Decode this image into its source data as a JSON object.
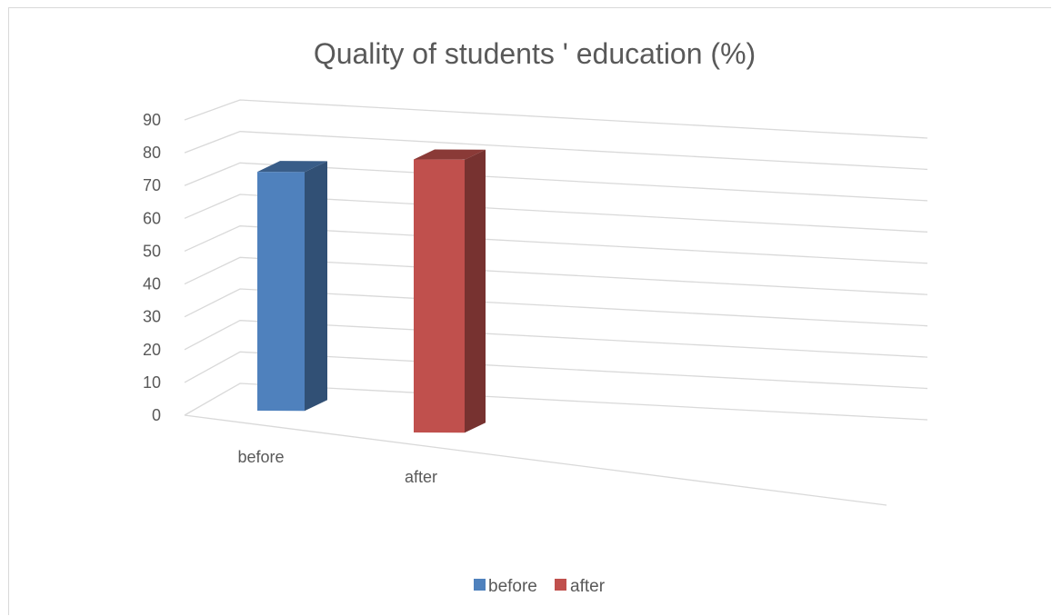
{
  "chart_data": {
    "type": "bar",
    "style": "3d-column",
    "title": "Quality of students ' education (%)",
    "categories": [
      "before",
      "after"
    ],
    "series": [
      {
        "name": "before",
        "category": "before",
        "value": 70,
        "color": "#4F81BD"
      },
      {
        "name": "after",
        "category": "after",
        "value": 80,
        "color": "#C0504D"
      }
    ],
    "ylim": [
      0,
      90
    ],
    "yticks": [
      "0",
      "10",
      "20",
      "30",
      "40",
      "50",
      "60",
      "70",
      "80",
      "90"
    ],
    "grid": true,
    "legend": {
      "position": "bottom",
      "entries": [
        {
          "label": "before",
          "color": "#4F81BD"
        },
        {
          "label": "after",
          "color": "#C0504D"
        }
      ]
    }
  }
}
